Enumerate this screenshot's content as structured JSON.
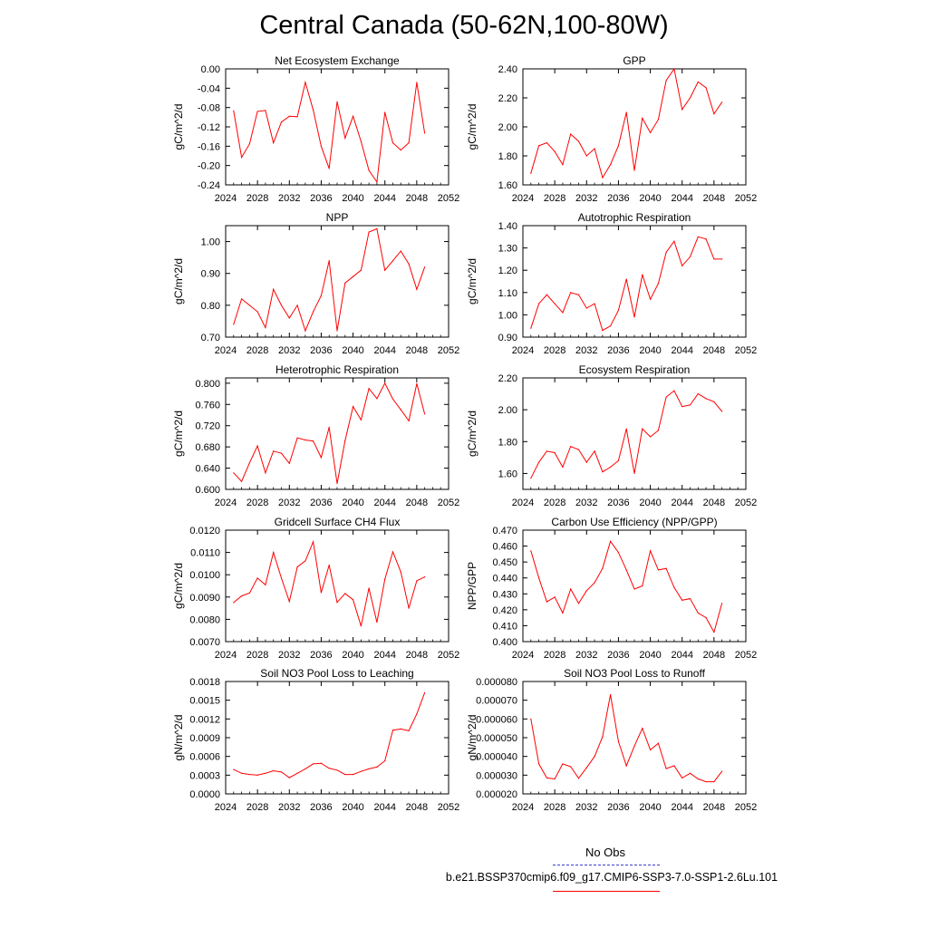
{
  "page_title": "Central Canada (50-62N,100-80W)",
  "legend": {
    "obs_label": "No Obs",
    "obs_color": "#3a3ad0",
    "model_label": "b.e21.BSSP370cmip6.f09_g17.CMIP6-SSP3-7.0-SSP1-2.6Lu.101",
    "model_color": "#ff0000"
  },
  "chart_data": [
    {
      "type": "line",
      "title": "Net Ecosystem Exchange",
      "ylabel": "gC/m^2/d",
      "xlabel": "",
      "xlim": [
        2024,
        2052
      ],
      "ylim": [
        -0.24,
        0.0
      ],
      "xticks": [
        "2024",
        "2028",
        "2032",
        "2036",
        "2040",
        "2044",
        "2048",
        "2052"
      ],
      "yticks": [
        "-0.24",
        "-0.20",
        "-0.16",
        "-0.12",
        "-0.08",
        "-0.04",
        "0.00"
      ],
      "x": [
        2025,
        2026,
        2027,
        2028,
        2029,
        2030,
        2031,
        2032,
        2033,
        2034,
        2035,
        2036,
        2037,
        2038,
        2039,
        2040,
        2041,
        2042,
        2043,
        2044,
        2045,
        2046,
        2047,
        2048,
        2049
      ],
      "values": [
        -0.087,
        -0.183,
        -0.155,
        -0.088,
        -0.086,
        -0.153,
        -0.11,
        -0.098,
        -0.099,
        -0.028,
        -0.085,
        -0.16,
        -0.206,
        -0.068,
        -0.143,
        -0.098,
        -0.15,
        -0.21,
        -0.234,
        -0.09,
        -0.153,
        -0.168,
        -0.153,
        -0.028,
        -0.133
      ]
    },
    {
      "type": "line",
      "title": "GPP",
      "ylabel": "gC/m^2/d",
      "xlabel": "",
      "xlim": [
        2024,
        2052
      ],
      "ylim": [
        1.6,
        2.4
      ],
      "xticks": [
        "2024",
        "2028",
        "2032",
        "2036",
        "2040",
        "2044",
        "2048",
        "2052"
      ],
      "yticks": [
        "1.60",
        "1.80",
        "2.00",
        "2.20",
        "2.40"
      ],
      "x": [
        2025,
        2026,
        2027,
        2028,
        2029,
        2030,
        2031,
        2032,
        2033,
        2034,
        2035,
        2036,
        2037,
        2038,
        2039,
        2040,
        2041,
        2042,
        2043,
        2044,
        2045,
        2046,
        2047,
        2048,
        2049
      ],
      "values": [
        1.68,
        1.87,
        1.89,
        1.83,
        1.74,
        1.95,
        1.9,
        1.8,
        1.85,
        1.65,
        1.74,
        1.87,
        2.1,
        1.7,
        2.06,
        1.96,
        2.05,
        2.32,
        2.4,
        2.12,
        2.2,
        2.31,
        2.27,
        2.09,
        2.17
      ]
    },
    {
      "type": "line",
      "title": "NPP",
      "ylabel": "gC/m^2/d",
      "xlabel": "",
      "xlim": [
        2024,
        2052
      ],
      "ylim": [
        0.7,
        1.05
      ],
      "xticks": [
        "2024",
        "2028",
        "2032",
        "2036",
        "2040",
        "2044",
        "2048",
        "2052"
      ],
      "yticks": [
        "0.70",
        "0.80",
        "0.90",
        "1.00"
      ],
      "x": [
        2025,
        2026,
        2027,
        2028,
        2029,
        2030,
        2031,
        2032,
        2033,
        2034,
        2035,
        2036,
        2037,
        2038,
        2039,
        2040,
        2041,
        2042,
        2043,
        2044,
        2045,
        2046,
        2047,
        2048,
        2049
      ],
      "values": [
        0.74,
        0.82,
        0.8,
        0.78,
        0.73,
        0.85,
        0.8,
        0.76,
        0.8,
        0.72,
        0.78,
        0.83,
        0.94,
        0.72,
        0.87,
        0.89,
        0.91,
        1.03,
        1.04,
        0.91,
        0.94,
        0.97,
        0.93,
        0.85,
        0.92
      ]
    },
    {
      "type": "line",
      "title": "Autotrophic Respiration",
      "ylabel": "gC/m^2/d",
      "xlabel": "",
      "xlim": [
        2024,
        2052
      ],
      "ylim": [
        0.9,
        1.4
      ],
      "xticks": [
        "2024",
        "2028",
        "2032",
        "2036",
        "2040",
        "2044",
        "2048",
        "2052"
      ],
      "yticks": [
        "0.90",
        "1.00",
        "1.10",
        "1.20",
        "1.30",
        "1.40"
      ],
      "x": [
        2025,
        2026,
        2027,
        2028,
        2029,
        2030,
        2031,
        2032,
        2033,
        2034,
        2035,
        2036,
        2037,
        2038,
        2039,
        2040,
        2041,
        2042,
        2043,
        2044,
        2045,
        2046,
        2047,
        2048,
        2049
      ],
      "values": [
        0.94,
        1.05,
        1.09,
        1.05,
        1.01,
        1.1,
        1.09,
        1.03,
        1.05,
        0.93,
        0.95,
        1.02,
        1.16,
        0.99,
        1.18,
        1.07,
        1.14,
        1.28,
        1.33,
        1.22,
        1.26,
        1.35,
        1.34,
        1.25,
        1.25
      ]
    },
    {
      "type": "line",
      "title": "Heterotrophic Respiration",
      "ylabel": "gC/m^2/d",
      "xlabel": "",
      "xlim": [
        2024,
        2052
      ],
      "ylim": [
        0.6,
        0.81
      ],
      "xticks": [
        "2024",
        "2028",
        "2032",
        "2036",
        "2040",
        "2044",
        "2048",
        "2052"
      ],
      "yticks": [
        "0.600",
        "0.640",
        "0.680",
        "0.720",
        "0.760",
        "0.800"
      ],
      "x": [
        2025,
        2026,
        2027,
        2028,
        2029,
        2030,
        2031,
        2032,
        2033,
        2034,
        2035,
        2036,
        2037,
        2038,
        2039,
        2040,
        2041,
        2042,
        2043,
        2044,
        2045,
        2046,
        2047,
        2048,
        2049
      ],
      "values": [
        0.631,
        0.615,
        0.65,
        0.682,
        0.631,
        0.672,
        0.668,
        0.649,
        0.697,
        0.693,
        0.691,
        0.66,
        0.717,
        0.611,
        0.692,
        0.756,
        0.731,
        0.79,
        0.771,
        0.8,
        0.77,
        0.75,
        0.729,
        0.799,
        0.742
      ]
    },
    {
      "type": "line",
      "title": "Ecosystem Respiration",
      "ylabel": "gC/m^2/d",
      "xlabel": "",
      "xlim": [
        2024,
        2052
      ],
      "ylim": [
        1.5,
        2.2
      ],
      "xticks": [
        "2024",
        "2028",
        "2032",
        "2036",
        "2040",
        "2044",
        "2048",
        "2052"
      ],
      "yticks": [
        "1.60",
        "1.80",
        "2.00",
        "2.20"
      ],
      "x": [
        2025,
        2026,
        2027,
        2028,
        2029,
        2030,
        2031,
        2032,
        2033,
        2034,
        2035,
        2036,
        2037,
        2038,
        2039,
        2040,
        2041,
        2042,
        2043,
        2044,
        2045,
        2046,
        2047,
        2048,
        2049
      ],
      "values": [
        1.57,
        1.67,
        1.74,
        1.73,
        1.64,
        1.77,
        1.75,
        1.67,
        1.74,
        1.61,
        1.64,
        1.68,
        1.88,
        1.6,
        1.88,
        1.83,
        1.87,
        2.08,
        2.12,
        2.02,
        2.03,
        2.1,
        2.07,
        2.05,
        1.99
      ]
    },
    {
      "type": "line",
      "title": "Gridcell Surface CH4 Flux",
      "ylabel": "gC/m^2/d",
      "xlabel": "",
      "xlim": [
        2024,
        2052
      ],
      "ylim": [
        0.007,
        0.012
      ],
      "xticks": [
        "2024",
        "2028",
        "2032",
        "2036",
        "2040",
        "2044",
        "2048",
        "2052"
      ],
      "yticks": [
        "0.0070",
        "0.0080",
        "0.0090",
        "0.0100",
        "0.0110",
        "0.0120"
      ],
      "x": [
        2025,
        2026,
        2027,
        2028,
        2029,
        2030,
        2031,
        2032,
        2033,
        2034,
        2035,
        2036,
        2037,
        2038,
        2039,
        2040,
        2041,
        2042,
        2043,
        2044,
        2045,
        2046,
        2047,
        2048,
        2049
      ],
      "values": [
        0.00875,
        0.00905,
        0.00918,
        0.00985,
        0.00955,
        0.011,
        0.00985,
        0.0088,
        0.01035,
        0.01062,
        0.01148,
        0.0092,
        0.01043,
        0.00876,
        0.00916,
        0.00888,
        0.0077,
        0.0094,
        0.00787,
        0.0098,
        0.01103,
        0.01012,
        0.0085,
        0.00973,
        0.0099
      ]
    },
    {
      "type": "line",
      "title": "Carbon Use Efficiency (NPP/GPP)",
      "ylabel": "NPP/GPP",
      "xlabel": "",
      "xlim": [
        2024,
        2052
      ],
      "ylim": [
        0.4,
        0.47
      ],
      "xticks": [
        "2024",
        "2028",
        "2032",
        "2036",
        "2040",
        "2044",
        "2048",
        "2052"
      ],
      "yticks": [
        "0.400",
        "0.410",
        "0.420",
        "0.430",
        "0.440",
        "0.450",
        "0.460",
        "0.470"
      ],
      "x": [
        2025,
        2026,
        2027,
        2028,
        2029,
        2030,
        2031,
        2032,
        2033,
        2034,
        2035,
        2036,
        2037,
        2038,
        2039,
        2040,
        2041,
        2042,
        2043,
        2044,
        2045,
        2046,
        2047,
        2048,
        2049
      ],
      "values": [
        0.457,
        0.44,
        0.425,
        0.428,
        0.418,
        0.433,
        0.424,
        0.432,
        0.437,
        0.446,
        0.463,
        0.456,
        0.445,
        0.433,
        0.435,
        0.457,
        0.445,
        0.446,
        0.434,
        0.426,
        0.427,
        0.418,
        0.415,
        0.406,
        0.424
      ]
    },
    {
      "type": "line",
      "title": "Soil NO3 Pool Loss to Leaching",
      "ylabel": "gN/m^2/d",
      "xlabel": "",
      "xlim": [
        2024,
        2052
      ],
      "ylim": [
        0.0,
        0.0018
      ],
      "xticks": [
        "2024",
        "2028",
        "2032",
        "2036",
        "2040",
        "2044",
        "2048",
        "2052"
      ],
      "yticks": [
        "0.0000",
        "0.0003",
        "0.0006",
        "0.0009",
        "0.0012",
        "0.0015",
        "0.0018"
      ],
      "x": [
        2025,
        2026,
        2027,
        2028,
        2029,
        2030,
        2031,
        2032,
        2033,
        2034,
        2035,
        2036,
        2037,
        2038,
        2039,
        2040,
        2041,
        2042,
        2043,
        2044,
        2045,
        2046,
        2047,
        2048,
        2049
      ],
      "values": [
        0.00039,
        0.00033,
        0.00031,
        0.0003,
        0.00033,
        0.00037,
        0.00035,
        0.00026,
        0.00033,
        0.0004,
        0.00048,
        0.00049,
        0.00041,
        0.00038,
        0.00031,
        0.00031,
        0.00036,
        0.0004,
        0.00043,
        0.00053,
        0.00102,
        0.00104,
        0.00101,
        0.00128,
        0.00162
      ]
    },
    {
      "type": "line",
      "title": "Soil NO3 Pool Loss to Runoff",
      "ylabel": "gN/m^2/d",
      "xlabel": "",
      "xlim": [
        2024,
        2052
      ],
      "ylim": [
        2e-05,
        8e-05
      ],
      "xticks": [
        "2024",
        "2028",
        "2032",
        "2036",
        "2040",
        "2044",
        "2048",
        "2052"
      ],
      "yticks": [
        "0.000020",
        "0.000030",
        "0.000040",
        "0.000050",
        "0.000060",
        "0.000070",
        "0.000080"
      ],
      "x": [
        2025,
        2026,
        2027,
        2028,
        2029,
        2030,
        2031,
        2032,
        2033,
        2034,
        2035,
        2036,
        2037,
        2038,
        2039,
        2040,
        2041,
        2042,
        2043,
        2044,
        2045,
        2046,
        2047,
        2048,
        2049
      ],
      "values": [
        6e-05,
        3.6e-05,
        2.85e-05,
        2.8e-05,
        3.6e-05,
        3.45e-05,
        2.83e-05,
        3.4e-05,
        4e-05,
        5.05e-05,
        7.3e-05,
        4.8e-05,
        3.5e-05,
        4.55e-05,
        5.5e-05,
        4.35e-05,
        4.7e-05,
        3.35e-05,
        3.5e-05,
        2.85e-05,
        3.1e-05,
        2.8e-05,
        2.65e-05,
        2.65e-05,
        3.2e-05
      ]
    }
  ]
}
